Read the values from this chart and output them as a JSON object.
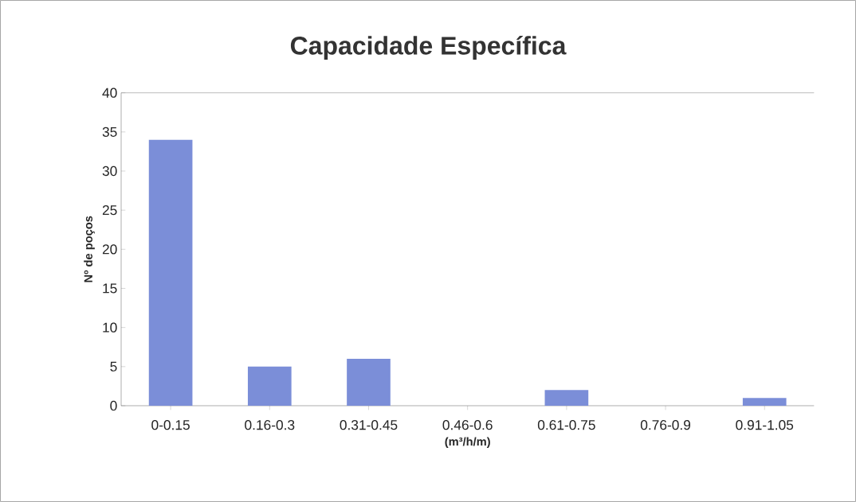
{
  "chart_data": {
    "type": "bar",
    "title": "Capacidade Específica",
    "xlabel": "(m³/h/m)",
    "ylabel": "Nº de poços",
    "categories": [
      "0-0.15",
      "0.16-0.3",
      "0.31-0.45",
      "0.46-0.6",
      "0.61-0.75",
      "0.76-0.9",
      "0.91-1.05"
    ],
    "values": [
      34,
      5,
      6,
      0,
      2,
      0,
      1
    ],
    "color": "#7b8ed8",
    "ylim": [
      0,
      40
    ],
    "yticks": [
      0,
      5,
      10,
      15,
      20,
      25,
      30,
      35,
      40
    ],
    "grid": false
  }
}
